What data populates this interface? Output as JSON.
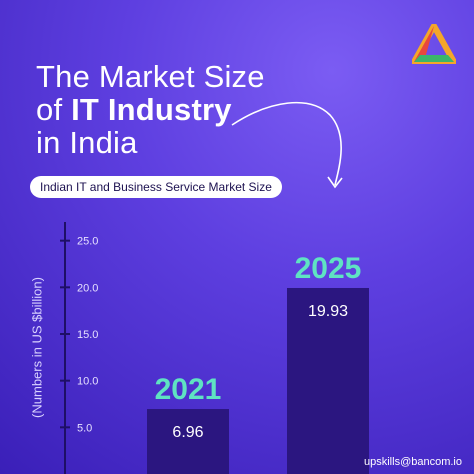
{
  "title": {
    "line1": "The Market Size",
    "line2_prefix": "of ",
    "line2_bold": "IT Industry",
    "line3": "in India"
  },
  "subtitle": "Indian IT and Business Service Market Size",
  "footer": "upskills@bancom.io",
  "colors": {
    "bar": "#2b1680",
    "year_label": "#5fe3c2",
    "axis": "#1e0f66",
    "text": "#ffffff"
  },
  "chart_data": {
    "type": "bar",
    "categories": [
      "2021",
      "2025"
    ],
    "values": [
      6.96,
      19.93
    ],
    "value_labels": [
      "6.96",
      "19.93"
    ],
    "ylabel": "(Numbers in US $billion)",
    "yticks": [
      "5.0",
      "10.0",
      "15.0",
      "20.0",
      "25.0"
    ],
    "ylim": [
      0,
      27
    ]
  }
}
